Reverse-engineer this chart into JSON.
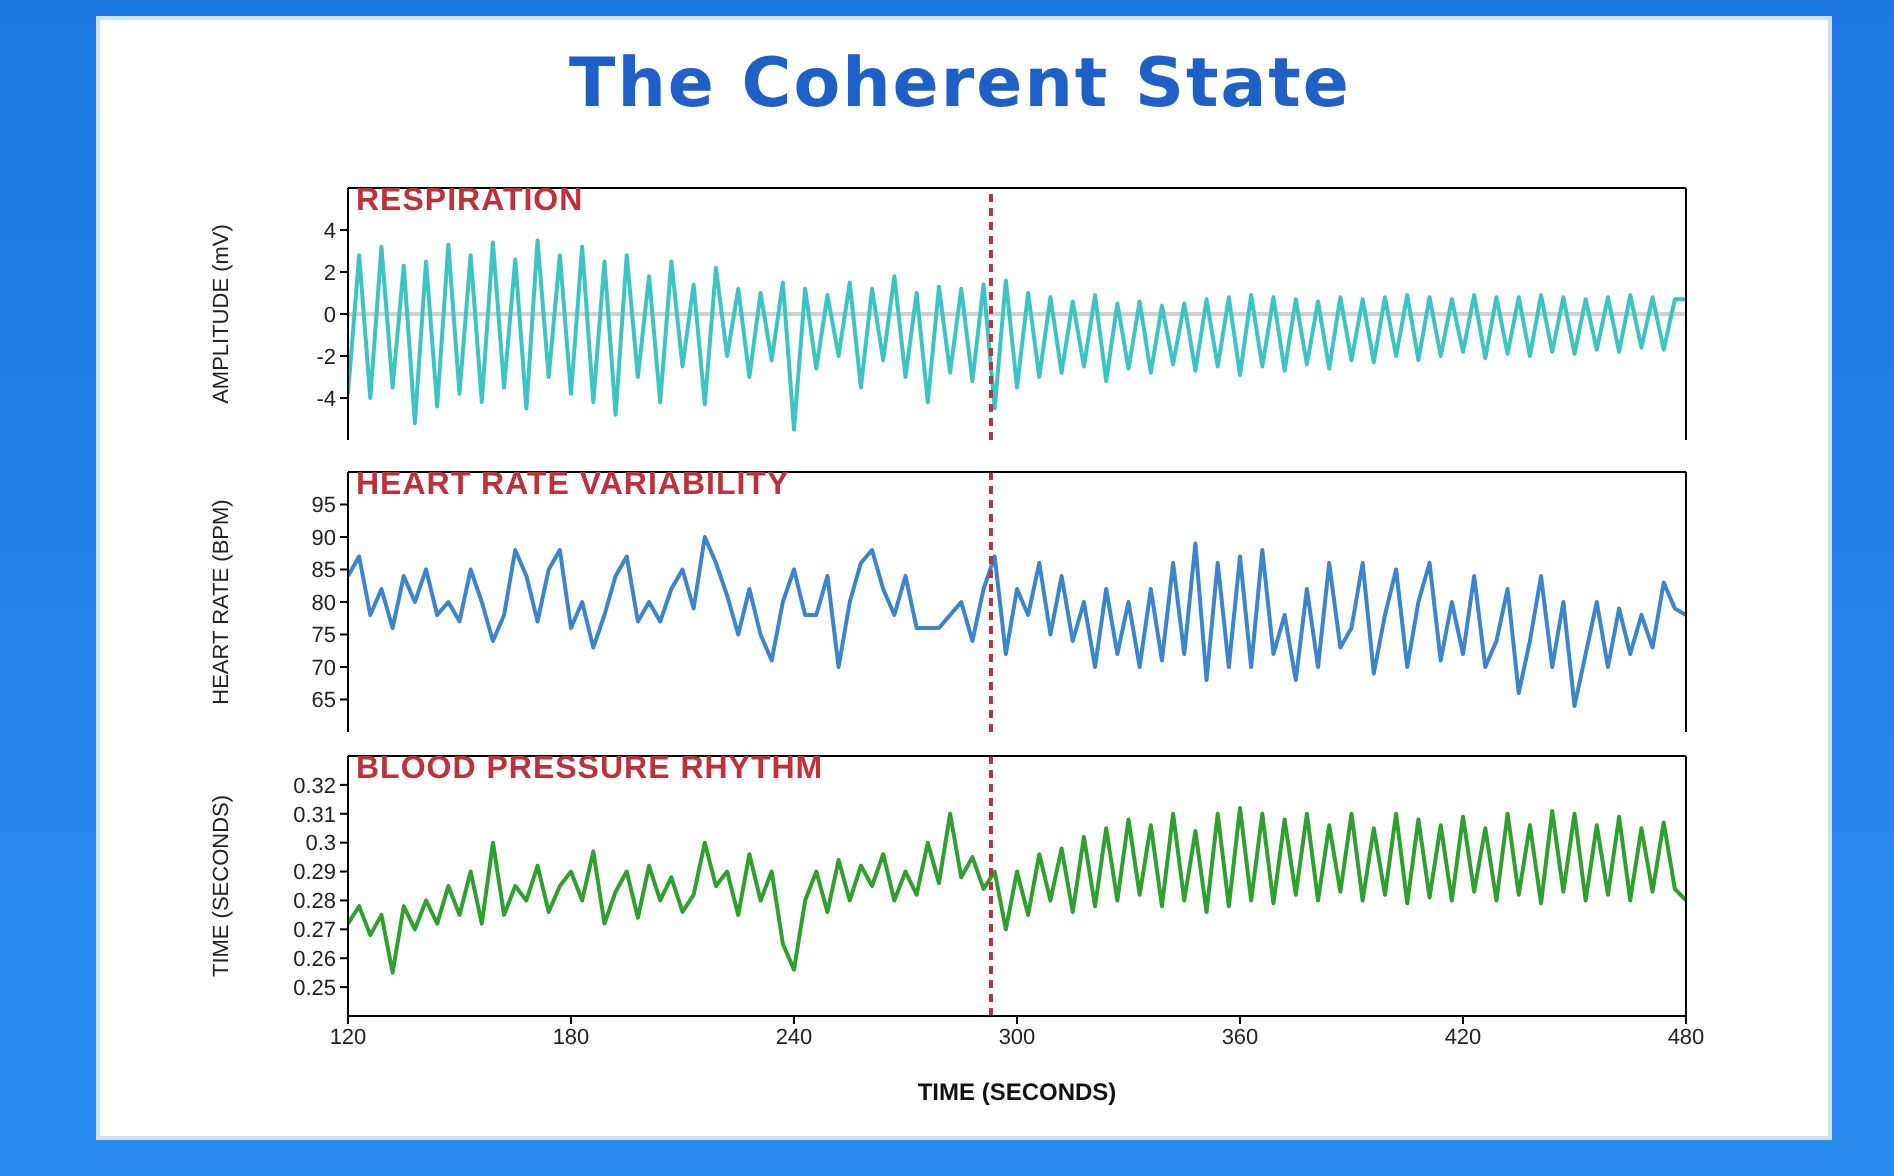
{
  "chart_data": [
    {
      "type": "line",
      "title": "The Coherent State",
      "subtitle": "RESPIRATION",
      "ylabel": "AMPLITUDE (mV)",
      "tick_labels": "y",
      "xlim": [
        120,
        480
      ],
      "xticks": [
        120,
        180,
        240,
        300,
        360,
        420,
        480
      ],
      "ylim": [
        -6,
        6
      ],
      "yticks": [
        -4,
        -2,
        0,
        2,
        4
      ],
      "x": [
        120,
        123,
        126,
        129,
        132,
        135,
        138,
        141,
        144,
        147,
        150,
        153,
        156,
        159,
        162,
        165,
        168,
        171,
        174,
        177,
        180,
        183,
        186,
        189,
        192,
        195,
        198,
        201,
        204,
        207,
        210,
        213,
        216,
        219,
        222,
        225,
        228,
        231,
        234,
        237,
        240,
        243,
        246,
        249,
        252,
        255,
        258,
        261,
        264,
        267,
        270,
        273,
        276,
        279,
        282,
        285,
        288,
        291,
        294,
        297,
        300,
        303,
        306,
        309,
        312,
        315,
        318,
        321,
        324,
        327,
        330,
        333,
        336,
        339,
        342,
        345,
        348,
        351,
        354,
        357,
        360,
        363,
        366,
        369,
        372,
        375,
        378,
        381,
        384,
        387,
        390,
        393,
        396,
        399,
        402,
        405,
        408,
        411,
        414,
        417,
        420,
        423,
        426,
        429,
        432,
        435,
        438,
        441,
        444,
        447,
        450,
        453,
        456,
        459,
        462,
        465,
        468,
        471,
        474,
        477,
        480
      ],
      "series": [
        {
          "color": "#3cc4c4",
          "values": [
            -3.8,
            2.8,
            -4,
            3.2,
            -3.5,
            2.3,
            -5.2,
            2.5,
            -4.4,
            3.3,
            -3.8,
            2.8,
            -4.2,
            3.4,
            -3.5,
            2.6,
            -4.5,
            3.5,
            -3,
            2.8,
            -3.8,
            3.2,
            -4.2,
            2.5,
            -4.8,
            2.8,
            -3,
            1.8,
            -4.2,
            2.5,
            -2.5,
            1.4,
            -4.3,
            2.2,
            -2,
            1.2,
            -3,
            1,
            -2.2,
            1.5,
            -5.5,
            1.2,
            -2.6,
            0.9,
            -2,
            1.5,
            -3.5,
            1.2,
            -2.2,
            1.8,
            -3,
            1,
            -4.2,
            1.3,
            -2.8,
            1.2,
            -3.2,
            1.4,
            -4.5,
            1.6,
            -3.5,
            1,
            -3,
            0.8,
            -2.8,
            0.6,
            -2.5,
            0.9,
            -3.2,
            0.5,
            -2.6,
            0.6,
            -2.8,
            0.4,
            -2.4,
            0.5,
            -2.7,
            0.7,
            -2.5,
            0.8,
            -2.9,
            0.9,
            -2.5,
            0.8,
            -2.7,
            0.7,
            -2.4,
            0.6,
            -2.6,
            0.8,
            -2.2,
            0.7,
            -2.3,
            0.8,
            -2,
            0.9,
            -2.2,
            0.8,
            -2,
            0.7,
            -1.8,
            0.9,
            -2.1,
            0.8,
            -1.9,
            0.8,
            -2,
            0.9,
            -1.8,
            0.8,
            -1.9,
            0.7,
            -1.7,
            0.8,
            -1.8,
            0.9,
            -1.6,
            0.8,
            -1.7,
            0.7,
            0.7
          ]
        }
      ],
      "ref_lines": [
        {
          "axis": "y",
          "value": 0,
          "color": "#d0d0d0",
          "line_style": "solid"
        },
        {
          "axis": "x",
          "value": 293,
          "color": "#c0303a",
          "line_style": "dashed"
        }
      ]
    },
    {
      "type": "line",
      "subtitle": "HEART RATE VARIABILITY",
      "ylabel": "HEART RATE (BPM)",
      "tick_labels": "y",
      "xlim": [
        120,
        480
      ],
      "xticks": [
        120,
        180,
        240,
        300,
        360,
        420,
        480
      ],
      "ylim": [
        60,
        100
      ],
      "yticks": [
        65,
        70,
        75,
        80,
        85,
        90,
        95
      ],
      "x": [
        120,
        123,
        126,
        129,
        132,
        135,
        138,
        141,
        144,
        147,
        150,
        153,
        156,
        159,
        162,
        165,
        168,
        171,
        174,
        177,
        180,
        183,
        186,
        189,
        192,
        195,
        198,
        201,
        204,
        207,
        210,
        213,
        216,
        219,
        222,
        225,
        228,
        231,
        234,
        237,
        240,
        243,
        246,
        249,
        252,
        255,
        258,
        261,
        264,
        267,
        270,
        273,
        276,
        279,
        282,
        285,
        288,
        291,
        294,
        297,
        300,
        303,
        306,
        309,
        312,
        315,
        318,
        321,
        324,
        327,
        330,
        333,
        336,
        339,
        342,
        345,
        348,
        351,
        354,
        357,
        360,
        363,
        366,
        369,
        372,
        375,
        378,
        381,
        384,
        387,
        390,
        393,
        396,
        399,
        402,
        405,
        408,
        411,
        414,
        417,
        420,
        423,
        426,
        429,
        432,
        435,
        438,
        441,
        444,
        447,
        450,
        453,
        456,
        459,
        462,
        465,
        468,
        471,
        474,
        477,
        480
      ],
      "series": [
        {
          "color": "#3a85cc",
          "values": [
            84,
            87,
            78,
            82,
            76,
            84,
            80,
            85,
            78,
            80,
            77,
            85,
            80,
            74,
            78,
            88,
            84,
            77,
            85,
            88,
            76,
            80,
            73,
            78,
            84,
            87,
            77,
            80,
            77,
            82,
            85,
            79,
            90,
            86,
            81,
            75,
            82,
            75,
            71,
            80,
            85,
            78,
            78,
            84,
            70,
            80,
            86,
            88,
            82,
            78,
            84,
            76,
            76,
            76,
            78,
            80,
            74,
            82,
            87,
            72,
            82,
            78,
            86,
            75,
            84,
            74,
            80,
            70,
            82,
            72,
            80,
            70,
            82,
            71,
            86,
            72,
            89,
            68,
            86,
            70,
            87,
            70,
            88,
            72,
            78,
            68,
            82,
            70,
            86,
            73,
            76,
            86,
            69,
            78,
            85,
            70,
            80,
            86,
            71,
            80,
            72,
            84,
            70,
            74,
            82,
            66,
            74,
            84,
            70,
            80,
            64,
            72,
            80,
            70,
            79,
            72,
            78,
            73,
            83,
            79,
            78
          ]
        }
      ],
      "ref_lines": [
        {
          "axis": "x",
          "value": 293,
          "color": "#c0303a",
          "line_style": "dashed"
        }
      ]
    },
    {
      "type": "line",
      "subtitle": "BLOOD PRESSURE RHYTHM",
      "xlabel": "TIME (SECONDS)",
      "ylabel": "TIME (SECONDS)",
      "xlim": [
        120,
        480
      ],
      "xticks": [
        120,
        180,
        240,
        300,
        360,
        420,
        480
      ],
      "ylim": [
        0.24,
        0.33
      ],
      "yticks": [
        0.25,
        0.26,
        0.27,
        0.28,
        0.29,
        0.3,
        0.31,
        0.32
      ],
      "x": [
        120,
        123,
        126,
        129,
        132,
        135,
        138,
        141,
        144,
        147,
        150,
        153,
        156,
        159,
        162,
        165,
        168,
        171,
        174,
        177,
        180,
        183,
        186,
        189,
        192,
        195,
        198,
        201,
        204,
        207,
        210,
        213,
        216,
        219,
        222,
        225,
        228,
        231,
        234,
        237,
        240,
        243,
        246,
        249,
        252,
        255,
        258,
        261,
        264,
        267,
        270,
        273,
        276,
        279,
        282,
        285,
        288,
        291,
        294,
        297,
        300,
        303,
        306,
        309,
        312,
        315,
        318,
        321,
        324,
        327,
        330,
        333,
        336,
        339,
        342,
        345,
        348,
        351,
        354,
        357,
        360,
        363,
        366,
        369,
        372,
        375,
        378,
        381,
        384,
        387,
        390,
        393,
        396,
        399,
        402,
        405,
        408,
        411,
        414,
        417,
        420,
        423,
        426,
        429,
        432,
        435,
        438,
        441,
        444,
        447,
        450,
        453,
        456,
        459,
        462,
        465,
        468,
        471,
        474,
        477,
        480
      ],
      "series": [
        {
          "color": "#2ea02e",
          "values": [
            0.272,
            0.278,
            0.268,
            0.275,
            0.255,
            0.278,
            0.27,
            0.28,
            0.272,
            0.285,
            0.275,
            0.29,
            0.272,
            0.3,
            0.275,
            0.285,
            0.28,
            0.292,
            0.276,
            0.285,
            0.29,
            0.28,
            0.297,
            0.272,
            0.283,
            0.29,
            0.274,
            0.292,
            0.28,
            0.288,
            0.276,
            0.282,
            0.3,
            0.285,
            0.29,
            0.275,
            0.296,
            0.28,
            0.29,
            0.265,
            0.256,
            0.28,
            0.29,
            0.276,
            0.294,
            0.28,
            0.292,
            0.285,
            0.296,
            0.28,
            0.29,
            0.282,
            0.3,
            0.286,
            0.31,
            0.288,
            0.295,
            0.284,
            0.29,
            0.27,
            0.29,
            0.275,
            0.296,
            0.28,
            0.298,
            0.276,
            0.302,
            0.278,
            0.305,
            0.28,
            0.308,
            0.282,
            0.306,
            0.278,
            0.31,
            0.28,
            0.304,
            0.276,
            0.31,
            0.278,
            0.312,
            0.28,
            0.31,
            0.279,
            0.308,
            0.282,
            0.31,
            0.28,
            0.306,
            0.283,
            0.31,
            0.28,
            0.305,
            0.282,
            0.31,
            0.279,
            0.308,
            0.281,
            0.306,
            0.28,
            0.309,
            0.283,
            0.305,
            0.28,
            0.31,
            0.282,
            0.306,
            0.279,
            0.311,
            0.283,
            0.31,
            0.28,
            0.306,
            0.282,
            0.309,
            0.28,
            0.305,
            0.283,
            0.307,
            0.284,
            0.28
          ]
        }
      ],
      "ref_lines": [
        {
          "axis": "x",
          "value": 293,
          "color": "#c0303a",
          "line_style": "dashed"
        }
      ]
    }
  ]
}
